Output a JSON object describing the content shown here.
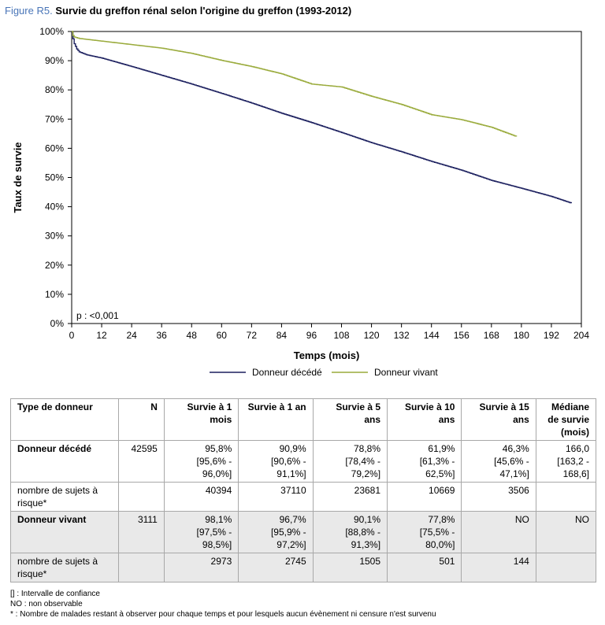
{
  "figure": {
    "label": "Figure R5.",
    "title": "Survie du greffon rénal selon l'origine du greffon (1993-2012)"
  },
  "chart_data": {
    "type": "line",
    "xlabel": "Temps (mois)",
    "ylabel": "Taux de survie",
    "xlim": [
      0,
      204
    ],
    "ylim": [
      0,
      100
    ],
    "x_ticks": [
      0,
      12,
      24,
      36,
      48,
      60,
      72,
      84,
      96,
      108,
      120,
      132,
      144,
      156,
      168,
      180,
      192,
      204
    ],
    "y_ticks": [
      0,
      10,
      20,
      30,
      40,
      50,
      60,
      70,
      80,
      90,
      100
    ],
    "y_tick_labels": [
      "0%",
      "10%",
      "20%",
      "30%",
      "40%",
      "50%",
      "60%",
      "70%",
      "80%",
      "90%",
      "100%"
    ],
    "annotation": "p : <0,001",
    "legend_position": "bottom",
    "grid": false,
    "series": [
      {
        "name": "Donneur décédé",
        "color": "#1b1f5e",
        "x": [
          0,
          0.5,
          1,
          2,
          3,
          6,
          12,
          24,
          36,
          48,
          60,
          72,
          84,
          96,
          108,
          120,
          132,
          144,
          156,
          168,
          180,
          192,
          200
        ],
        "y": [
          100,
          97.5,
          95.8,
          94,
          93,
          92,
          90.9,
          88,
          85,
          82,
          78.8,
          75.5,
          72,
          68.8,
          65.4,
          61.9,
          58.8,
          55.5,
          52.5,
          49,
          46.3,
          43.5,
          41.2
        ]
      },
      {
        "name": "Donneur vivant",
        "color": "#9aab3c",
        "x": [
          0,
          0.5,
          1,
          3,
          6,
          12,
          24,
          36,
          48,
          60,
          72,
          84,
          96,
          108,
          120,
          132,
          144,
          156,
          168,
          178
        ],
        "y": [
          100,
          98.6,
          98.1,
          97.6,
          97.3,
          96.7,
          95.5,
          94.3,
          92.5,
          90.1,
          88,
          85.5,
          82,
          81,
          77.8,
          75,
          71.5,
          69.8,
          67.2,
          64
        ]
      }
    ]
  },
  "table": {
    "headers": [
      "Type de donneur",
      "N",
      "Survie à 1 mois",
      "Survie à 1 an",
      "Survie à 5 ans",
      "Survie à 10 ans",
      "Survie à 15 ans",
      "Médiane de survie (mois)"
    ],
    "rows": [
      {
        "type": "Donneur décédé",
        "n": "42595",
        "m1": [
          "95,8%",
          "[95,6% -",
          "96,0%]"
        ],
        "y1": [
          "90,9%",
          "[90,6% -",
          "91,1%]"
        ],
        "y5": [
          "78,8%",
          "[78,4% -",
          "79,2%]"
        ],
        "y10": [
          "61,9%",
          "[61,3% -",
          "62,5%]"
        ],
        "y15": [
          "46,3%",
          "[45,6% -",
          "47,1%]"
        ],
        "median": [
          "166,0",
          "[163,2 -",
          "168,6]"
        ],
        "risk_label": "nombre de sujets à risque*",
        "risk": [
          "40394",
          "37110",
          "23681",
          "10669",
          "3506",
          ""
        ]
      },
      {
        "type": "Donneur vivant",
        "n": "3111",
        "m1": [
          "98,1%",
          "[97,5% -",
          "98,5%]"
        ],
        "y1": [
          "96,7%",
          "[95,9% -",
          "97,2%]"
        ],
        "y5": [
          "90,1%",
          "[88,8% -",
          "91,3%]"
        ],
        "y10": [
          "77,8%",
          "[75,5% -",
          "80,0%]"
        ],
        "y15": [
          "NO"
        ],
        "median": [
          "NO"
        ],
        "risk_label": "nombre de sujets à risque*",
        "risk": [
          "2973",
          "2745",
          "1505",
          "501",
          "144",
          ""
        ]
      }
    ]
  },
  "notes": [
    "[] : Intervalle de confiance",
    "NO : non observable",
    "* : Nombre de malades restant à observer pour chaque temps et pour lesquels aucun évènement ni censure n'est survenu"
  ]
}
